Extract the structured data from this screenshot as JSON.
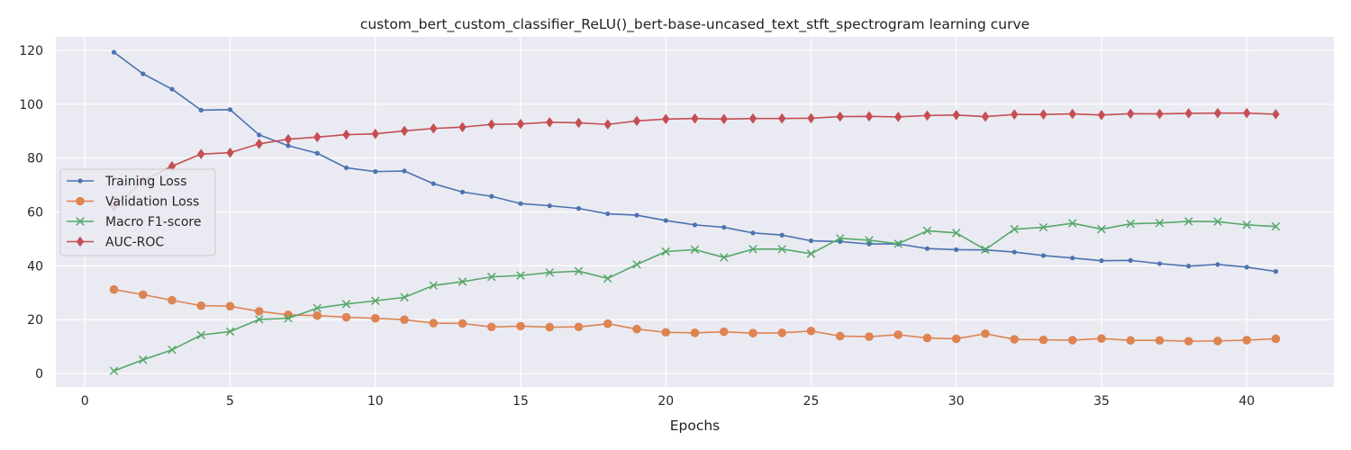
{
  "chart_data": {
    "type": "line",
    "title": "custom_bert_custom_classifier_ReLU()_bert-base-uncased_text_stft_spectrogram learning curve",
    "xlabel": "Epochs",
    "ylabel": "",
    "xlim": [
      -1,
      43
    ],
    "ylim": [
      -5,
      125
    ],
    "xticks": [
      0,
      5,
      10,
      15,
      20,
      25,
      30,
      35,
      40
    ],
    "yticks": [
      0,
      20,
      40,
      60,
      80,
      100,
      120
    ],
    "grid": true,
    "legend_position": "center-left",
    "x": [
      1,
      2,
      3,
      4,
      5,
      6,
      7,
      8,
      9,
      10,
      11,
      12,
      13,
      14,
      15,
      16,
      17,
      18,
      19,
      20,
      21,
      22,
      23,
      24,
      25,
      26,
      27,
      28,
      29,
      30,
      31,
      32,
      33,
      34,
      35,
      36,
      37,
      38,
      39,
      40,
      41
    ],
    "series": [
      {
        "name": "Training Loss",
        "color": "#4c72b0",
        "marker": "point",
        "values": [
          119.3,
          111.3,
          105.6,
          97.8,
          98.0,
          88.6,
          84.6,
          81.8,
          76.4,
          75.0,
          75.2,
          70.5,
          67.4,
          65.8,
          63.1,
          62.3,
          61.3,
          59.3,
          58.8,
          56.8,
          55.2,
          54.3,
          52.2,
          51.4,
          49.3,
          49.0,
          48.1,
          48.1,
          46.4,
          46.0,
          45.9,
          45.1,
          43.8,
          42.9,
          41.9,
          42.0,
          40.8,
          39.9,
          40.5,
          39.5,
          37.9
        ]
      },
      {
        "name": "Validation Loss",
        "color": "#dd8452",
        "marker": "circle",
        "values": [
          31.2,
          29.3,
          27.2,
          25.2,
          25.0,
          23.1,
          21.8,
          21.5,
          20.9,
          20.5,
          20.0,
          18.7,
          18.6,
          17.3,
          17.6,
          17.2,
          17.3,
          18.5,
          16.5,
          15.3,
          15.1,
          15.5,
          15.0,
          15.1,
          15.8,
          13.9,
          13.7,
          14.4,
          13.2,
          12.9,
          14.8,
          12.7,
          12.5,
          12.4,
          13.0,
          12.3,
          12.3,
          12.0,
          12.1,
          12.4,
          12.9
        ]
      },
      {
        "name": "Macro F1-score",
        "color": "#55a868",
        "marker": "x",
        "values": [
          1.0,
          5.1,
          8.8,
          14.3,
          15.6,
          20.1,
          20.5,
          24.3,
          25.8,
          27.0,
          28.3,
          32.7,
          34.1,
          35.9,
          36.4,
          37.5,
          38.0,
          35.3,
          40.5,
          45.3,
          46.0,
          43.1,
          46.2,
          46.2,
          44.5,
          50.2,
          49.5,
          48.2,
          53.0,
          52.2,
          46.0,
          53.6,
          54.3,
          55.8,
          53.6,
          55.6,
          55.9,
          56.5,
          56.4,
          55.2,
          54.6
        ]
      },
      {
        "name": "AUC-ROC",
        "color": "#c44e52",
        "marker": "diamond",
        "values": [
          62.0,
          71.5,
          77.0,
          81.5,
          82.0,
          85.3,
          87.0,
          87.8,
          88.7,
          89.0,
          90.1,
          91.0,
          91.5,
          92.5,
          92.7,
          93.3,
          93.1,
          92.5,
          93.8,
          94.5,
          94.7,
          94.5,
          94.7,
          94.7,
          94.8,
          95.4,
          95.5,
          95.3,
          95.8,
          96.0,
          95.4,
          96.2,
          96.2,
          96.4,
          96.0,
          96.5,
          96.4,
          96.6,
          96.7,
          96.7,
          96.3
        ]
      }
    ]
  }
}
